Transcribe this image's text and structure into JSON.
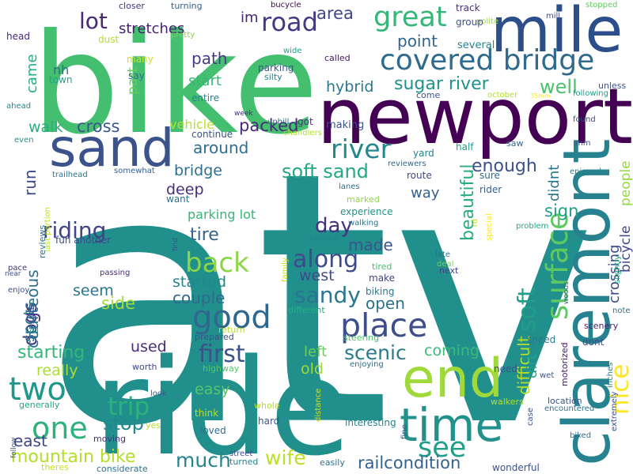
{
  "words": [
    {
      "text": "atv",
      "color": "#21908d"
    },
    {
      "text": "bike",
      "color": "#44bf70"
    },
    {
      "text": "ride",
      "color": "#21908d"
    },
    {
      "text": "newport",
      "color": "#440154"
    },
    {
      "text": "claremont",
      "color": "#26828e"
    },
    {
      "text": "mile",
      "color": "#2c4f8b"
    },
    {
      "text": "sand",
      "color": "#3b528b"
    },
    {
      "text": "end",
      "color": "#9fda3a"
    },
    {
      "text": "time",
      "color": "#21918c"
    },
    {
      "text": "covered bridge",
      "color": "#2f6b8e"
    },
    {
      "text": "river",
      "color": "#24878e"
    },
    {
      "text": "two",
      "color": "#1f988b"
    },
    {
      "text": "great",
      "color": "#35b779"
    },
    {
      "text": "one",
      "color": "#2db27d"
    },
    {
      "text": "place",
      "color": "#3d4e8a"
    },
    {
      "text": "along",
      "color": "#3e4a89"
    },
    {
      "text": "good",
      "color": "#31678e"
    },
    {
      "text": "see",
      "color": "#1f9e89"
    },
    {
      "text": "back",
      "color": "#8bd646"
    },
    {
      "text": "soft",
      "color": "#1f9e89"
    },
    {
      "text": "road",
      "color": "#443a83"
    },
    {
      "text": "surface",
      "color": "#5ec962"
    },
    {
      "text": "sandy",
      "color": "#2a768e"
    },
    {
      "text": "lot",
      "color": "#482878"
    },
    {
      "text": "first",
      "color": "#3b528b"
    },
    {
      "text": "trip",
      "color": "#2db27d"
    },
    {
      "text": "riding",
      "color": "#414487"
    },
    {
      "text": "soft sand",
      "color": "#22a884"
    },
    {
      "text": "mountain bike",
      "color": "#b5de2b"
    },
    {
      "text": "much",
      "color": "#25848e"
    },
    {
      "text": "scenic",
      "color": "#287c8e"
    },
    {
      "text": "sugar river",
      "color": "#20928c"
    },
    {
      "text": "point",
      "color": "#32648e"
    },
    {
      "text": "well",
      "color": "#4ac16d"
    },
    {
      "text": "enough",
      "color": "#3b528b"
    },
    {
      "text": "stop",
      "color": "#23888e"
    },
    {
      "text": "day",
      "color": "#46307e"
    },
    {
      "text": "railcondition",
      "color": "#33638d"
    },
    {
      "text": "wife",
      "color": "#bddf26"
    },
    {
      "text": "nice",
      "color": "#fde725"
    },
    {
      "text": "path",
      "color": "#443a83"
    },
    {
      "text": "hybrid",
      "color": "#2a788e"
    },
    {
      "text": "bridge",
      "color": "#2d708e"
    },
    {
      "text": "tire",
      "color": "#33638d"
    },
    {
      "text": "started",
      "color": "#24868e"
    },
    {
      "text": "seem",
      "color": "#2a768e"
    },
    {
      "text": "couple",
      "color": "#31688e"
    },
    {
      "text": "dogs",
      "color": "#46337f"
    },
    {
      "text": "starting",
      "color": "#35b779"
    },
    {
      "text": "really",
      "color": "#addc30"
    },
    {
      "text": "east",
      "color": "#414487"
    },
    {
      "text": "easy",
      "color": "#56c667"
    },
    {
      "text": "coming",
      "color": "#3aba76"
    },
    {
      "text": "left",
      "color": "#6ece58"
    },
    {
      "text": "old",
      "color": "#9fda3a"
    },
    {
      "text": "used",
      "color": "#472f7d"
    },
    {
      "text": "made",
      "color": "#39568c"
    },
    {
      "text": "open",
      "color": "#2c728e"
    },
    {
      "text": "west",
      "color": "#3e4a89"
    },
    {
      "text": "side",
      "color": "#a5db36"
    },
    {
      "text": "run",
      "color": "#3e4989"
    },
    {
      "text": "walk",
      "color": "#29af7f"
    },
    {
      "text": "cross",
      "color": "#38588c"
    },
    {
      "text": "around",
      "color": "#2e6e8e"
    },
    {
      "text": "packed",
      "color": "#472a7a"
    },
    {
      "text": "area",
      "color": "#404688"
    },
    {
      "text": "vehicle",
      "color": "#b8de29"
    },
    {
      "text": "stretches",
      "color": "#482173"
    },
    {
      "text": "start",
      "color": "#37b878"
    },
    {
      "text": "deep",
      "color": "#46307e"
    },
    {
      "text": "parking lot",
      "color": "#35b779"
    },
    {
      "text": "way",
      "color": "#34618d"
    },
    {
      "text": "didnt",
      "color": "#2b748e"
    },
    {
      "text": "sign",
      "color": "#1fa088"
    },
    {
      "text": "crossing",
      "color": "#3e4a89"
    },
    {
      "text": "people",
      "color": "#95d840"
    },
    {
      "text": "beautiful",
      "color": "#27ad81"
    },
    {
      "text": "difficult",
      "color": "#b2dd2d"
    },
    {
      "text": "dirt",
      "color": "#1fa287"
    },
    {
      "text": "bicycle",
      "color": "#3f4889"
    },
    {
      "text": "courteous",
      "color": "#2d718e"
    },
    {
      "text": "spots",
      "color": "#2c728e"
    },
    {
      "text": "came",
      "color": "#26ad81"
    },
    {
      "text": "part",
      "color": "#65cb5e"
    },
    {
      "text": "im",
      "color": "#482878"
    },
    {
      "text": "nh",
      "color": "#2d708e"
    },
    {
      "text": "town",
      "color": "#20a386"
    },
    {
      "text": "dust",
      "color": "#b5de2b"
    },
    {
      "text": "head",
      "color": "#482878"
    },
    {
      "text": "pretty",
      "color": "#84d44b"
    },
    {
      "text": "closer",
      "color": "#46337f"
    },
    {
      "text": "turning",
      "color": "#355f8d"
    },
    {
      "text": "bucycle",
      "color": "#440154"
    },
    {
      "text": "track",
      "color": "#46307e"
    },
    {
      "text": "polite",
      "color": "#9bd93c"
    },
    {
      "text": "group",
      "color": "#3b528b"
    },
    {
      "text": "mill",
      "color": "#3f4889"
    },
    {
      "text": "stopped",
      "color": "#63cb5f"
    },
    {
      "text": "several",
      "color": "#24878e"
    },
    {
      "text": "called",
      "color": "#481467"
    },
    {
      "text": "wide",
      "color": "#1fa088"
    },
    {
      "text": "many",
      "color": "#d0e11c"
    },
    {
      "text": "say",
      "color": "#2e6f8e"
    },
    {
      "text": "parking",
      "color": "#38588c"
    },
    {
      "text": "silty",
      "color": "#26828e"
    },
    {
      "text": "entire",
      "color": "#26828e"
    },
    {
      "text": "come",
      "color": "#3b528b"
    },
    {
      "text": "october",
      "color": "#b5de2b"
    },
    {
      "text": "35mm",
      "color": "#fde725"
    },
    {
      "text": "following",
      "color": "#1f9e89"
    },
    {
      "text": "unless",
      "color": "#3b528b"
    },
    {
      "text": "ahead",
      "color": "#24878e"
    },
    {
      "text": "week",
      "color": "#472c7a"
    },
    {
      "text": "continue",
      "color": "#3b528b"
    },
    {
      "text": "uphill",
      "color": "#31688e"
    },
    {
      "text": "chandlers",
      "color": "#b5de2b"
    },
    {
      "text": "got",
      "color": "#472f7d"
    },
    {
      "text": "making",
      "color": "#3b528b"
    },
    {
      "text": "yard",
      "color": "#26828e"
    },
    {
      "text": "half",
      "color": "#1f9e89"
    },
    {
      "text": "saw",
      "color": "#31688e"
    },
    {
      "text": "found",
      "color": "#3e4a89"
    },
    {
      "text": "mm",
      "color": "#3b528b"
    },
    {
      "text": "even",
      "color": "#21918c"
    },
    {
      "text": "trailhead",
      "color": "#2c728e"
    },
    {
      "text": "somewhat",
      "color": "#355f8d"
    },
    {
      "text": "reviewers",
      "color": "#31688e"
    },
    {
      "text": "route",
      "color": "#3e4a89"
    },
    {
      "text": "sure",
      "color": "#31688e"
    },
    {
      "text": "enjoyed",
      "color": "#26828e"
    },
    {
      "text": "want",
      "color": "#2c728e"
    },
    {
      "text": "lanes",
      "color": "#2e6f8e"
    },
    {
      "text": "rider",
      "color": "#355f8d"
    },
    {
      "text": "marked",
      "color": "#8fd744"
    },
    {
      "text": "experience",
      "color": "#21918c"
    },
    {
      "text": "walking",
      "color": "#2c728e"
    },
    {
      "text": "rd",
      "color": "#bddf26"
    },
    {
      "text": "special",
      "color": "#fde725"
    },
    {
      "text": "problem",
      "color": "#22a884"
    },
    {
      "text": "last portion",
      "color": "#c2df23"
    },
    {
      "text": "fun another",
      "color": "#3e4a89"
    },
    {
      "text": "downhill",
      "color": "#26828e"
    },
    {
      "text": "find",
      "color": "#3b528b"
    },
    {
      "text": "family",
      "color": "#c8e020"
    },
    {
      "text": "reviews",
      "color": "#2e6f8e"
    },
    {
      "text": "pace",
      "color": "#46337f"
    },
    {
      "text": "passing",
      "color": "#472c7a"
    },
    {
      "text": "tired",
      "color": "#44bf70"
    },
    {
      "text": "late",
      "color": "#2d708e"
    },
    {
      "text": "deal",
      "color": "#75d054"
    },
    {
      "text": "next",
      "color": "#414487"
    },
    {
      "text": "slightly",
      "color": "#20a386"
    },
    {
      "text": "near",
      "color": "#3b528b"
    },
    {
      "text": "enjoy",
      "color": "#3b528b"
    },
    {
      "text": "make",
      "color": "#414487"
    },
    {
      "text": "biking",
      "color": "#2a788e"
    },
    {
      "text": "woods",
      "color": "#31688e"
    },
    {
      "text": "note",
      "color": "#2e6f8e"
    },
    {
      "text": "said",
      "color": "#3b528b"
    },
    {
      "text": "soil",
      "color": "#21918c"
    },
    {
      "text": "different",
      "color": "#27ad81"
    },
    {
      "text": "return",
      "color": "#b2dd2d"
    },
    {
      "text": "scenery",
      "color": "#481f70"
    },
    {
      "text": "prepared",
      "color": "#3b528b"
    },
    {
      "text": "steering",
      "color": "#4ac16d"
    },
    {
      "text": "speed",
      "color": "#2a788e"
    },
    {
      "text": "dont",
      "color": "#3b528b"
    },
    {
      "text": "highway",
      "color": "#56c667"
    },
    {
      "text": "worth",
      "color": "#3e4a89"
    },
    {
      "text": "enjoying",
      "color": "#2e6f8e"
    },
    {
      "text": "need",
      "color": "#3b528b"
    },
    {
      "text": "motorized",
      "color": "#481467"
    },
    {
      "text": "wet",
      "color": "#3b528b"
    },
    {
      "text": "inches",
      "color": "#26828e"
    },
    {
      "text": "look",
      "color": "#355f8d"
    },
    {
      "text": "location",
      "color": "#3b528b"
    },
    {
      "text": "encountered",
      "color": "#2c728e"
    },
    {
      "text": "generally",
      "color": "#22a884"
    },
    {
      "text": "whole",
      "color": "#b2dd2d"
    },
    {
      "text": "walkers",
      "color": "#b2dd2d"
    },
    {
      "text": "extremely",
      "color": "#3b528b"
    },
    {
      "text": "case",
      "color": "#3b528b"
    },
    {
      "text": "think",
      "color": "#b5de2b"
    },
    {
      "text": "hard",
      "color": "#3b528b"
    },
    {
      "text": "distance",
      "color": "#c8e020"
    },
    {
      "text": "interesting",
      "color": "#26828e"
    },
    {
      "text": "yes",
      "color": "#b5de2b"
    },
    {
      "text": "loved",
      "color": "#2e6f8e"
    },
    {
      "text": "fine",
      "color": "#3b528b"
    },
    {
      "text": "biked",
      "color": "#2c728e"
    },
    {
      "text": "follow",
      "color": "#3b528b"
    },
    {
      "text": "moving",
      "color": "#472c7a"
    },
    {
      "text": "street",
      "color": "#3b528b"
    },
    {
      "text": "turned",
      "color": "#26828e"
    },
    {
      "text": "theres",
      "color": "#c8e020"
    },
    {
      "text": "considerate",
      "color": "#2c728e"
    },
    {
      "text": "easily",
      "color": "#2e6f8e"
    },
    {
      "text": "wonderful",
      "color": "#3b528b"
    }
  ]
}
